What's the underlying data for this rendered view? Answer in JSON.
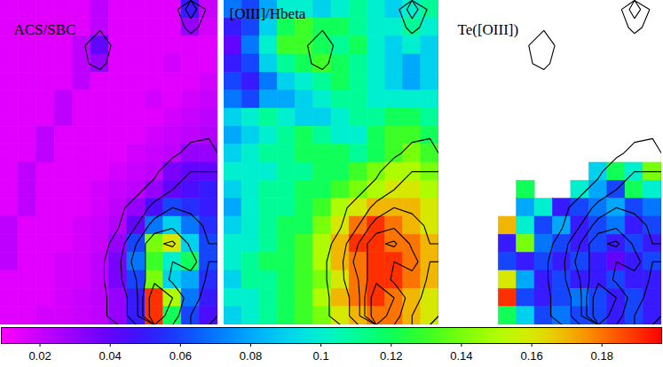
{
  "chart_data": {
    "type": "heatmap",
    "contour_levels": [
      0.025,
      0.04,
      0.06,
      0.1,
      0.15
    ],
    "colorbar": {
      "range": [
        0.009,
        0.197
      ],
      "ticks": [
        0.02,
        0.04,
        0.06,
        0.08,
        0.1,
        0.12,
        0.14,
        0.16,
        0.18
      ]
    },
    "panels": [
      {
        "title": "ACS/SBC",
        "cells": [
          [
            0.015,
            0.015,
            0.015,
            0.015,
            0.015,
            0.022,
            0.015,
            0.015,
            0.015,
            0.015,
            0.05,
            0.02
          ],
          [
            0.015,
            0.015,
            0.015,
            0.015,
            0.015,
            0.022,
            0.015,
            0.015,
            0.015,
            0.015,
            0.03,
            0.018
          ],
          [
            0.015,
            0.015,
            0.015,
            0.015,
            0.022,
            0.04,
            0.015,
            0.015,
            0.015,
            0.015,
            0.015,
            0.015
          ],
          [
            0.015,
            0.015,
            0.015,
            0.015,
            0.022,
            0.03,
            0.015,
            0.015,
            0.015,
            0.018,
            0.015,
            0.015
          ],
          [
            0.015,
            0.015,
            0.015,
            0.015,
            0.022,
            0.015,
            0.015,
            0.015,
            0.015,
            0.015,
            0.015,
            0.018
          ],
          [
            0.015,
            0.015,
            0.015,
            0.022,
            0.015,
            0.015,
            0.015,
            0.015,
            0.018,
            0.015,
            0.018,
            0.02
          ],
          [
            0.015,
            0.015,
            0.015,
            0.022,
            0.015,
            0.015,
            0.015,
            0.015,
            0.015,
            0.018,
            0.02,
            0.022
          ],
          [
            0.015,
            0.015,
            0.022,
            0.015,
            0.015,
            0.015,
            0.015,
            0.015,
            0.018,
            0.02,
            0.022,
            0.024
          ],
          [
            0.015,
            0.015,
            0.022,
            0.015,
            0.015,
            0.015,
            0.015,
            0.018,
            0.02,
            0.022,
            0.03,
            0.03
          ],
          [
            0.015,
            0.022,
            0.015,
            0.015,
            0.015,
            0.015,
            0.018,
            0.02,
            0.022,
            0.035,
            0.04,
            0.04
          ],
          [
            0.015,
            0.022,
            0.015,
            0.015,
            0.015,
            0.018,
            0.02,
            0.022,
            0.03,
            0.04,
            0.045,
            0.05
          ],
          [
            0.015,
            0.022,
            0.015,
            0.015,
            0.015,
            0.018,
            0.022,
            0.03,
            0.045,
            0.06,
            0.055,
            0.05
          ],
          [
            0.022,
            0.015,
            0.015,
            0.015,
            0.018,
            0.02,
            0.024,
            0.04,
            0.07,
            0.09,
            0.07,
            0.055
          ],
          [
            0.022,
            0.015,
            0.015,
            0.015,
            0.018,
            0.02,
            0.03,
            0.06,
            0.14,
            0.16,
            0.09,
            0.06
          ],
          [
            0.022,
            0.015,
            0.015,
            0.018,
            0.018,
            0.022,
            0.035,
            0.07,
            0.13,
            0.1,
            0.12,
            0.06
          ],
          [
            0.015,
            0.015,
            0.015,
            0.018,
            0.018,
            0.022,
            0.035,
            0.06,
            0.14,
            0.09,
            0.08,
            0.055
          ],
          [
            0.015,
            0.015,
            0.015,
            0.018,
            0.02,
            0.022,
            0.03,
            0.05,
            0.19,
            0.15,
            0.07,
            0.05
          ],
          [
            0.015,
            0.015,
            0.018,
            0.018,
            0.02,
            0.022,
            0.03,
            0.05,
            0.19,
            0.12,
            0.06,
            0.045
          ]
        ]
      },
      {
        "title": "[OIII]/Hbeta",
        "cells": [
          [
            0.07,
            0.06,
            0.08,
            0.1,
            0.1,
            0.09,
            0.1,
            0.11,
            0.1,
            0.09,
            0.1,
            0.11
          ],
          [
            0.05,
            0.06,
            0.09,
            0.12,
            0.13,
            0.12,
            0.12,
            0.11,
            0.1,
            0.1,
            0.11,
            0.1
          ],
          [
            0.04,
            0.07,
            0.1,
            0.13,
            0.13,
            0.12,
            0.11,
            0.12,
            0.1,
            0.09,
            0.1,
            0.09
          ],
          [
            0.05,
            0.06,
            0.09,
            0.11,
            0.12,
            0.13,
            0.12,
            0.11,
            0.1,
            0.09,
            0.08,
            0.09
          ],
          [
            0.06,
            0.05,
            0.07,
            0.09,
            0.1,
            0.11,
            0.12,
            0.11,
            0.1,
            0.09,
            0.08,
            0.09
          ],
          [
            0.07,
            0.06,
            0.08,
            0.08,
            0.09,
            0.1,
            0.11,
            0.11,
            0.1,
            0.1,
            0.1,
            0.1
          ],
          [
            0.09,
            0.1,
            0.11,
            0.1,
            0.09,
            0.09,
            0.1,
            0.11,
            0.11,
            0.12,
            0.12,
            0.11
          ],
          [
            0.08,
            0.09,
            0.1,
            0.11,
            0.12,
            0.11,
            0.1,
            0.1,
            0.12,
            0.13,
            0.13,
            0.12
          ],
          [
            0.09,
            0.1,
            0.11,
            0.11,
            0.12,
            0.12,
            0.12,
            0.11,
            0.12,
            0.13,
            0.14,
            0.13
          ],
          [
            0.1,
            0.1,
            0.1,
            0.11,
            0.11,
            0.12,
            0.12,
            0.13,
            0.14,
            0.15,
            0.15,
            0.14
          ],
          [
            0.09,
            0.1,
            0.11,
            0.11,
            0.12,
            0.12,
            0.13,
            0.14,
            0.15,
            0.16,
            0.16,
            0.15
          ],
          [
            0.08,
            0.1,
            0.11,
            0.11,
            0.12,
            0.13,
            0.15,
            0.16,
            0.17,
            0.17,
            0.17,
            0.16
          ],
          [
            0.09,
            0.1,
            0.11,
            0.12,
            0.12,
            0.14,
            0.16,
            0.18,
            0.19,
            0.18,
            0.17,
            0.16
          ],
          [
            0.1,
            0.1,
            0.11,
            0.12,
            0.13,
            0.15,
            0.17,
            0.19,
            0.19,
            0.18,
            0.18,
            0.17
          ],
          [
            0.1,
            0.11,
            0.12,
            0.12,
            0.13,
            0.15,
            0.17,
            0.18,
            0.19,
            0.19,
            0.18,
            0.17
          ],
          [
            0.09,
            0.11,
            0.11,
            0.12,
            0.13,
            0.14,
            0.16,
            0.18,
            0.19,
            0.19,
            0.18,
            0.17
          ],
          [
            0.1,
            0.1,
            0.11,
            0.12,
            0.13,
            0.15,
            0.17,
            0.18,
            0.19,
            0.18,
            0.17,
            0.16
          ],
          [
            0.09,
            0.1,
            0.11,
            0.12,
            0.13,
            0.14,
            0.16,
            0.17,
            0.18,
            0.18,
            0.17,
            0.16
          ]
        ]
      },
      {
        "title": "Te([OIII])",
        "cells": [
          [
            null,
            null,
            null,
            null,
            null,
            null,
            null,
            null,
            null,
            null,
            null,
            null
          ],
          [
            null,
            null,
            null,
            null,
            null,
            null,
            null,
            null,
            null,
            null,
            null,
            null
          ],
          [
            null,
            null,
            null,
            null,
            null,
            null,
            null,
            null,
            null,
            null,
            null,
            null
          ],
          [
            null,
            null,
            null,
            null,
            null,
            null,
            null,
            null,
            null,
            null,
            null,
            null
          ],
          [
            null,
            null,
            null,
            null,
            null,
            null,
            null,
            null,
            null,
            null,
            null,
            null
          ],
          [
            null,
            null,
            null,
            null,
            null,
            null,
            null,
            null,
            null,
            null,
            null,
            null
          ],
          [
            null,
            null,
            null,
            null,
            null,
            null,
            null,
            null,
            null,
            null,
            null,
            null
          ],
          [
            null,
            null,
            null,
            null,
            null,
            null,
            null,
            null,
            null,
            null,
            null,
            null
          ],
          [
            null,
            null,
            null,
            null,
            null,
            null,
            null,
            null,
            null,
            null,
            null,
            null
          ],
          [
            null,
            null,
            null,
            null,
            null,
            null,
            null,
            null,
            0.09,
            0.12,
            0.1,
            0.14
          ],
          [
            null,
            null,
            null,
            null,
            0.12,
            null,
            null,
            0.1,
            0.08,
            0.06,
            0.12,
            0.1
          ],
          [
            null,
            null,
            null,
            null,
            0.08,
            0.1,
            0.05,
            0.06,
            0.07,
            0.08,
            0.06,
            0.07
          ],
          [
            null,
            null,
            null,
            0.17,
            0.1,
            0.06,
            0.08,
            0.05,
            0.06,
            0.07,
            0.05,
            0.06
          ],
          [
            null,
            null,
            null,
            0.05,
            0.14,
            0.07,
            0.06,
            0.05,
            0.06,
            0.05,
            0.06,
            0.05
          ],
          [
            null,
            null,
            null,
            0.06,
            0.05,
            0.06,
            0.05,
            0.06,
            0.05,
            0.04,
            0.05,
            0.06
          ],
          [
            null,
            null,
            null,
            0.16,
            0.08,
            0.05,
            0.06,
            0.05,
            0.05,
            0.06,
            0.05,
            0.05
          ],
          [
            null,
            null,
            null,
            0.19,
            0.06,
            0.05,
            0.06,
            0.07,
            0.06,
            0.05,
            0.06,
            0.05
          ],
          [
            null,
            null,
            null,
            0.12,
            0.09,
            0.06,
            0.07,
            0.06,
            0.06,
            0.05,
            0.06,
            0.05
          ]
        ]
      }
    ]
  }
}
